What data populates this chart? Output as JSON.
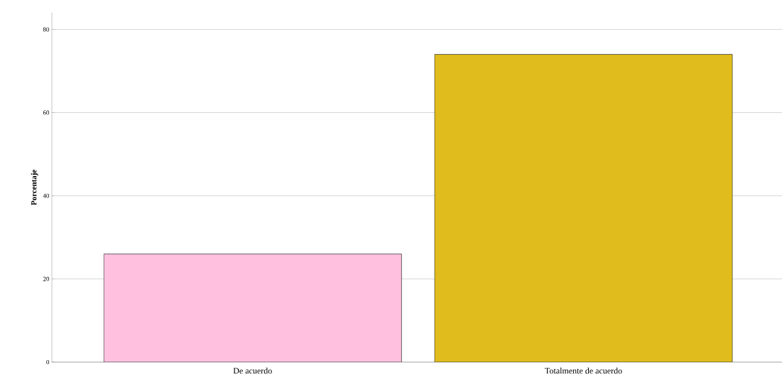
{
  "chart_data": {
    "type": "bar",
    "ylabel": "Porcentaje",
    "categories": [
      "De acuerdo",
      "Totalmente de acuerdo"
    ],
    "values": [
      26,
      74
    ],
    "colors": [
      "#ffc0e0",
      "#e0bc1c"
    ],
    "ylim": [
      0,
      84
    ],
    "yticks": [
      0,
      20,
      40,
      60,
      80
    ],
    "grid": "y"
  }
}
